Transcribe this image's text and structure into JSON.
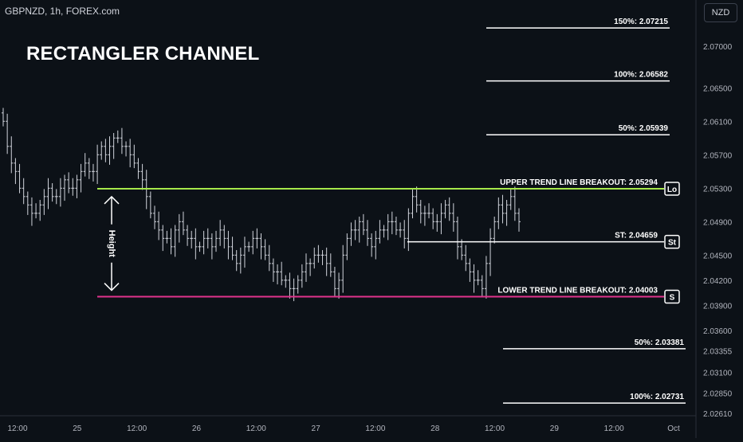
{
  "header": {
    "symbol": "GBPNZD, 1h, FOREX.com",
    "title": "RECTANGLER CHANNEL",
    "currency": "NZD"
  },
  "colors": {
    "background": "#0c1117",
    "candle": "#d1d4dc",
    "upper_line": "#a6e84a",
    "lower_line": "#e0338c",
    "level_line": "#ffffff",
    "axis_text": "#b2b5be"
  },
  "chart_data": {
    "type": "candlestick",
    "ylim": [
      2.0258,
      2.0755
    ],
    "y_ticks": [
      "2.07000",
      "2.06500",
      "2.06100",
      "2.05700",
      "2.05300",
      "2.04900",
      "2.04500",
      "2.04200",
      "2.03900",
      "2.03600",
      "2.03355",
      "2.03100",
      "2.02850",
      "2.02610"
    ],
    "x_ticks": [
      "12:00",
      "25",
      "12:00",
      "26",
      "12:00",
      "27",
      "12:00",
      "28",
      "12:00",
      "29",
      "12:00",
      "Oct"
    ],
    "levels": [
      {
        "label": "150%: 2.07215",
        "value": 2.07215
      },
      {
        "label": "100%: 2.06582",
        "value": 2.06582
      },
      {
        "label": "50%: 2.05939",
        "value": 2.05939
      },
      {
        "label": "UPPER TREND LINE BREAKOUT: 2.05294",
        "value": 2.05294,
        "badge": "Lo"
      },
      {
        "label": "ST: 2.04659",
        "value": 2.04659,
        "badge": "St"
      },
      {
        "label": "LOWER TREND LINE BREAKOUT: 2.04003",
        "value": 2.04003,
        "badge": "S"
      },
      {
        "label": "50%: 2.03381",
        "value": 2.03381
      },
      {
        "label": "100%: 2.02731",
        "value": 2.02731
      }
    ],
    "height_annotation": "Height",
    "closes": [
      2.061,
      2.058,
      2.056,
      2.055,
      2.053,
      2.052,
      2.051,
      2.05,
      2.05,
      2.051,
      2.052,
      2.053,
      2.052,
      2.052,
      2.053,
      2.054,
      2.053,
      2.053,
      2.054,
      2.055,
      2.056,
      2.055,
      2.055,
      2.057,
      2.058,
      2.057,
      2.058,
      2.059,
      2.059,
      2.058,
      2.058,
      2.057,
      2.056,
      2.055,
      2.054,
      2.052,
      2.05,
      2.049,
      2.048,
      2.047,
      2.047,
      2.046,
      2.048,
      2.049,
      2.048,
      2.047,
      2.047,
      2.046,
      2.046,
      2.047,
      2.047,
      2.046,
      2.047,
      2.048,
      2.047,
      2.046,
      2.045,
      2.044,
      2.045,
      2.046,
      2.046,
      2.047,
      2.047,
      2.046,
      2.045,
      2.044,
      2.043,
      2.043,
      2.042,
      2.042,
      2.041,
      2.041,
      2.042,
      2.043,
      2.044,
      2.044,
      2.045,
      2.045,
      2.045,
      2.044,
      2.043,
      2.041,
      2.042,
      2.045,
      2.047,
      2.048,
      2.048,
      2.049,
      2.048,
      2.047,
      2.046,
      2.047,
      2.048,
      2.048,
      2.049,
      2.049,
      2.048,
      2.048,
      2.047,
      2.05,
      2.052,
      2.051,
      2.05,
      2.05,
      2.05,
      2.049,
      2.049,
      2.05,
      2.051,
      2.05,
      2.049,
      2.046,
      2.045,
      2.044,
      2.043,
      2.042,
      2.042,
      2.041,
      2.044,
      2.047,
      2.049,
      2.051,
      2.05,
      2.051,
      2.052,
      2.05,
      2.049
    ]
  }
}
